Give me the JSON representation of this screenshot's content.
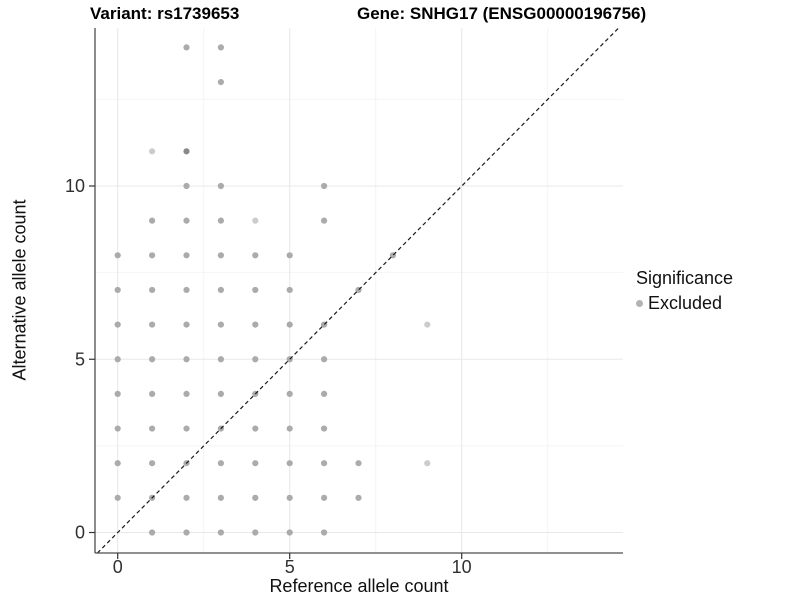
{
  "titles": {
    "variant": "Variant: rs1739653",
    "gene": "Gene: SNHG17 (ENSG00000196756)"
  },
  "axes": {
    "x": {
      "label": "Reference allele count",
      "ticks": [
        0,
        5,
        10
      ]
    },
    "y": {
      "label": "Alternative allele count",
      "ticks": [
        0,
        5,
        10
      ]
    }
  },
  "legend": {
    "title": "Significance",
    "items": [
      {
        "label": "Excluded",
        "color": "#b3b3b3"
      }
    ]
  },
  "colors": {
    "background": "#ffffff",
    "grid_major": "#e8e8e8",
    "grid_minor": "#f4f4f4",
    "axis_line": "#4d4d4d",
    "tick_mark": "#333333",
    "tick_label": "#303030",
    "point": "#ababab",
    "point_light": "#cccccc",
    "point_dark": "#8a8a8a",
    "identity_line": "#1a1a1a"
  },
  "chart_data": {
    "type": "scatter",
    "title": "Variant: rs1739653   Gene: SNHG17 (ENSG00000196756)",
    "xlabel": "Reference allele count",
    "ylabel": "Alternative allele count",
    "xlim": [
      -0.7,
      14.7
    ],
    "ylim": [
      -0.6,
      14.5
    ],
    "x_ticks": [
      0,
      5,
      10
    ],
    "y_ticks": [
      0,
      5,
      10
    ],
    "minor_gridlines_x": [
      2.5,
      7.5,
      12.5
    ],
    "minor_gridlines_y": [
      2.5,
      7.5,
      12.5
    ],
    "grid": true,
    "legend_position": "right",
    "identity_line": {
      "style": "dashed",
      "equation": "y = x"
    },
    "series": [
      {
        "name": "Excluded",
        "points": [
          [
            0,
            1
          ],
          [
            0,
            2
          ],
          [
            0,
            3
          ],
          [
            0,
            4
          ],
          [
            0,
            5
          ],
          [
            0,
            6
          ],
          [
            0,
            7
          ],
          [
            0,
            8
          ],
          [
            1,
            0
          ],
          [
            1,
            1
          ],
          [
            1,
            2
          ],
          [
            1,
            3
          ],
          [
            1,
            4
          ],
          [
            1,
            5
          ],
          [
            1,
            6
          ],
          [
            1,
            7
          ],
          [
            1,
            8
          ],
          [
            1,
            9
          ],
          [
            1,
            11
          ],
          [
            2,
            0
          ],
          [
            2,
            1
          ],
          [
            2,
            2
          ],
          [
            2,
            3
          ],
          [
            2,
            4
          ],
          [
            2,
            5
          ],
          [
            2,
            6
          ],
          [
            2,
            7
          ],
          [
            2,
            8
          ],
          [
            2,
            9
          ],
          [
            2,
            10
          ],
          [
            2,
            11
          ],
          [
            2,
            14
          ],
          [
            3,
            0
          ],
          [
            3,
            1
          ],
          [
            3,
            2
          ],
          [
            3,
            3
          ],
          [
            3,
            4
          ],
          [
            3,
            5
          ],
          [
            3,
            6
          ],
          [
            3,
            7
          ],
          [
            3,
            8
          ],
          [
            3,
            9
          ],
          [
            3,
            10
          ],
          [
            3,
            13
          ],
          [
            3,
            14
          ],
          [
            4,
            0
          ],
          [
            4,
            1
          ],
          [
            4,
            2
          ],
          [
            4,
            3
          ],
          [
            4,
            4
          ],
          [
            4,
            5
          ],
          [
            4,
            6
          ],
          [
            4,
            7
          ],
          [
            4,
            8
          ],
          [
            4,
            9
          ],
          [
            5,
            0
          ],
          [
            5,
            1
          ],
          [
            5,
            2
          ],
          [
            5,
            3
          ],
          [
            5,
            4
          ],
          [
            5,
            5
          ],
          [
            5,
            6
          ],
          [
            5,
            7
          ],
          [
            5,
            8
          ],
          [
            6,
            0
          ],
          [
            6,
            1
          ],
          [
            6,
            2
          ],
          [
            6,
            3
          ],
          [
            6,
            4
          ],
          [
            6,
            5
          ],
          [
            6,
            6
          ],
          [
            6,
            9
          ],
          [
            6,
            10
          ],
          [
            7,
            1
          ],
          [
            7,
            2
          ],
          [
            7,
            7
          ],
          [
            8,
            8
          ],
          [
            9,
            2
          ],
          [
            9,
            6
          ]
        ],
        "light_points": [
          [
            1,
            11
          ],
          [
            4,
            9
          ],
          [
            9,
            2
          ],
          [
            9,
            6
          ]
        ],
        "dark_points": [
          [
            2,
            11
          ]
        ]
      }
    ]
  }
}
